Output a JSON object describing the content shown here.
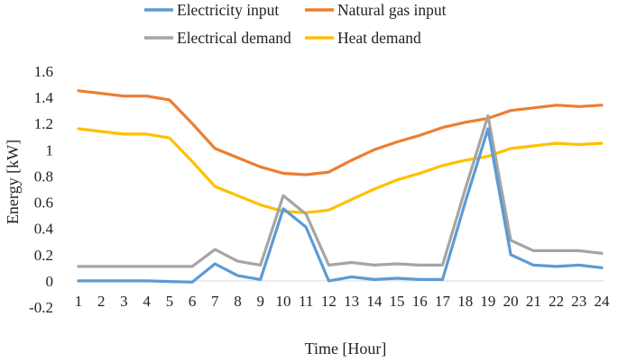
{
  "chart_data": {
    "type": "line",
    "xlabel": "Time [Hour]",
    "ylabel": "Energy [kW]",
    "x": [
      1,
      2,
      3,
      4,
      5,
      6,
      7,
      8,
      9,
      10,
      11,
      12,
      13,
      14,
      15,
      16,
      17,
      18,
      19,
      20,
      21,
      22,
      23,
      24
    ],
    "ylim": [
      -0.2,
      1.6
    ],
    "yticks": [
      "-0.2",
      "0",
      "0.2",
      "0.4",
      "0.6",
      "0.8",
      "1",
      "1.2",
      "1.4",
      "1.6"
    ],
    "grid": false,
    "legend_placement": "top",
    "series": [
      {
        "name": "Electricity input",
        "color": "#5b9bd5",
        "values": [
          0.0,
          0.0,
          0.0,
          0.0,
          -0.005,
          -0.01,
          0.13,
          0.04,
          0.01,
          0.55,
          0.41,
          0.0,
          0.03,
          0.01,
          0.02,
          0.01,
          0.01,
          0.6,
          1.16,
          0.2,
          0.12,
          0.11,
          0.12,
          0.1
        ]
      },
      {
        "name": "Natural gas input",
        "color": "#ed7d31",
        "values": [
          1.45,
          1.43,
          1.41,
          1.41,
          1.38,
          1.2,
          1.01,
          0.94,
          0.87,
          0.82,
          0.81,
          0.83,
          0.92,
          1.0,
          1.06,
          1.11,
          1.17,
          1.21,
          1.24,
          1.3,
          1.32,
          1.34,
          1.33,
          1.34
        ]
      },
      {
        "name": "Electrical demand",
        "color": "#a5a5a5",
        "values": [
          0.11,
          0.11,
          0.11,
          0.11,
          0.11,
          0.11,
          0.24,
          0.15,
          0.12,
          0.65,
          0.51,
          0.12,
          0.14,
          0.12,
          0.13,
          0.12,
          0.12,
          0.7,
          1.26,
          0.31,
          0.23,
          0.23,
          0.23,
          0.21
        ]
      },
      {
        "name": "Heat demand",
        "color": "#ffc000",
        "values": [
          1.16,
          1.14,
          1.12,
          1.12,
          1.09,
          0.91,
          0.72,
          0.65,
          0.58,
          0.53,
          0.52,
          0.54,
          0.62,
          0.7,
          0.77,
          0.82,
          0.88,
          0.92,
          0.95,
          1.01,
          1.03,
          1.05,
          1.04,
          1.05
        ]
      }
    ]
  }
}
